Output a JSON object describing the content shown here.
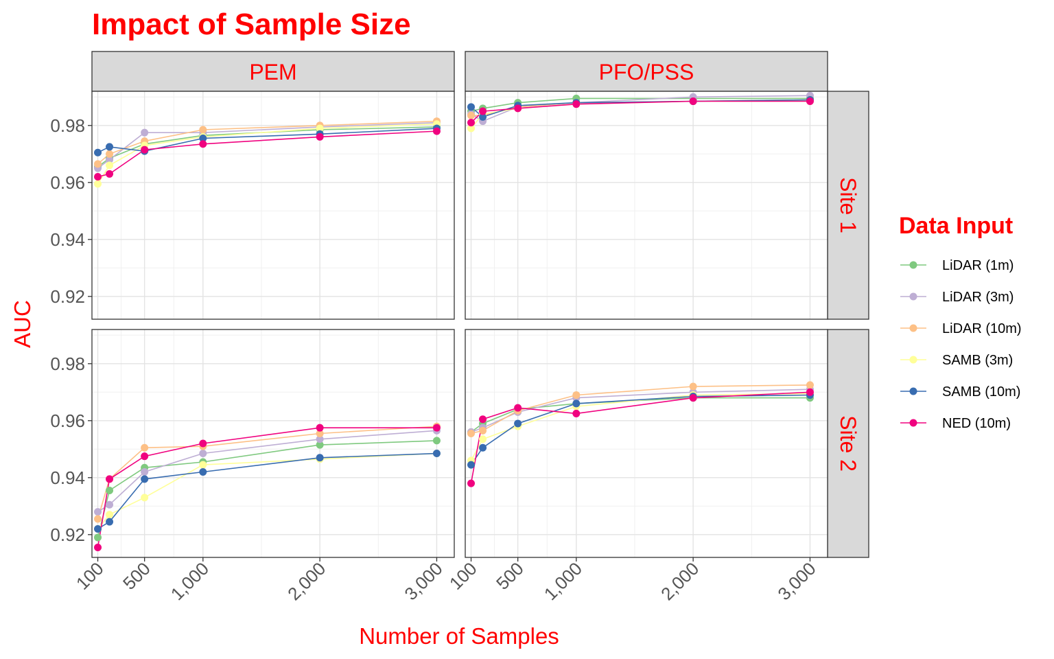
{
  "chart_data": {
    "type": "line",
    "title": "Impact of Sample Size",
    "xlabel": "Number of Samples",
    "ylabel": "AUC",
    "columns": [
      "PEM",
      "PFO/PSS"
    ],
    "rows": [
      "Site 1",
      "Site 2"
    ],
    "x": [
      100,
      200,
      500,
      1000,
      2000,
      3000
    ],
    "xticks": [
      100,
      500,
      1000,
      2000,
      3000
    ],
    "xtick_labels": [
      "100",
      "500",
      "1,000",
      "2,000",
      "3,000"
    ],
    "xlim": [
      50,
      3150
    ],
    "ylim": [
      0.912,
      0.992
    ],
    "yticks": [
      0.92,
      0.94,
      0.96,
      0.98
    ],
    "ytick_labels": [
      "0.92",
      "0.94",
      "0.96",
      "0.98"
    ],
    "grid": true,
    "legend": {
      "title": "Data Input",
      "position": "right",
      "entries": [
        "LiDAR (1m)",
        "LiDAR (3m)",
        "LiDAR (10m)",
        "SAMB (3m)",
        "SAMB (10m)",
        "NED (10m)"
      ]
    },
    "series_colors": [
      "#7fc97f",
      "#beaed4",
      "#fdc086",
      "#ffff99",
      "#386cb0",
      "#f0027f"
    ],
    "panels": [
      {
        "row": "Site 1",
        "col": "PEM",
        "series": [
          {
            "name": "LiDAR (1m)",
            "values": [
              0.9655,
              0.9685,
              0.9735,
              0.9765,
              0.9785,
              0.9795
            ]
          },
          {
            "name": "LiDAR (3m)",
            "values": [
              0.965,
              0.968,
              0.9775,
              0.9775,
              0.9795,
              0.981
            ]
          },
          {
            "name": "LiDAR (10m)",
            "values": [
              0.9665,
              0.97,
              0.9745,
              0.9785,
              0.98,
              0.9815
            ]
          },
          {
            "name": "SAMB (3m)",
            "values": [
              0.9595,
              0.966,
              0.973,
              0.976,
              0.979,
              0.9805
            ]
          },
          {
            "name": "SAMB (10m)",
            "values": [
              0.9705,
              0.9725,
              0.971,
              0.9755,
              0.977,
              0.979
            ]
          },
          {
            "name": "NED (10m)",
            "values": [
              0.962,
              0.963,
              0.9715,
              0.9735,
              0.976,
              0.978
            ]
          }
        ]
      },
      {
        "row": "Site 1",
        "col": "PFO/PSS",
        "series": [
          {
            "name": "LiDAR (1m)",
            "values": [
              0.985,
              0.986,
              0.988,
              0.9895,
              0.9895,
              0.9895
            ]
          },
          {
            "name": "LiDAR (3m)",
            "values": [
              0.984,
              0.9815,
              0.9865,
              0.988,
              0.99,
              0.9905
            ]
          },
          {
            "name": "LiDAR (10m)",
            "values": [
              0.9835,
              0.9835,
              0.9865,
              0.988,
              0.9885,
              0.989
            ]
          },
          {
            "name": "SAMB (3m)",
            "values": [
              0.979,
              0.984,
              0.986,
              0.9875,
              0.9885,
              0.9885
            ]
          },
          {
            "name": "SAMB (10m)",
            "values": [
              0.9865,
              0.983,
              0.987,
              0.988,
              0.9885,
              0.989
            ]
          },
          {
            "name": "NED (10m)",
            "values": [
              0.981,
              0.985,
              0.986,
              0.9875,
              0.9885,
              0.9885
            ]
          }
        ]
      },
      {
        "row": "Site 2",
        "col": "PEM",
        "series": [
          {
            "name": "LiDAR (1m)",
            "values": [
              0.919,
              0.9355,
              0.9435,
              0.9455,
              0.9515,
              0.953
            ]
          },
          {
            "name": "LiDAR (3m)",
            "values": [
              0.928,
              0.9305,
              0.942,
              0.9485,
              0.9535,
              0.9565
            ]
          },
          {
            "name": "LiDAR (10m)",
            "values": [
              0.9255,
              0.9395,
              0.9505,
              0.951,
              0.9555,
              0.958
            ]
          },
          {
            "name": "SAMB (3m)",
            "values": [
              0.922,
              0.927,
              0.933,
              0.9445,
              0.9465,
              0.9485
            ]
          },
          {
            "name": "SAMB (10m)",
            "values": [
              0.922,
              0.9245,
              0.9395,
              0.942,
              0.947,
              0.9485
            ]
          },
          {
            "name": "NED (10m)",
            "values": [
              0.9155,
              0.9395,
              0.9475,
              0.952,
              0.9575,
              0.9575
            ]
          }
        ]
      },
      {
        "row": "Site 2",
        "col": "PFO/PSS",
        "series": [
          {
            "name": "LiDAR (1m)",
            "values": [
              0.956,
              0.959,
              0.964,
              0.966,
              0.968,
              0.968
            ]
          },
          {
            "name": "LiDAR (3m)",
            "values": [
              0.956,
              0.9575,
              0.963,
              0.968,
              0.97,
              0.971
            ]
          },
          {
            "name": "LiDAR (10m)",
            "values": [
              0.9555,
              0.9565,
              0.9635,
              0.969,
              0.972,
              0.9725
            ]
          },
          {
            "name": "SAMB (3m)",
            "values": [
              0.946,
              0.9535,
              0.958,
              0.965,
              0.969,
              0.9695
            ]
          },
          {
            "name": "SAMB (10m)",
            "values": [
              0.9445,
              0.9505,
              0.959,
              0.966,
              0.9685,
              0.969
            ]
          },
          {
            "name": "NED (10m)",
            "values": [
              0.938,
              0.9605,
              0.9645,
              0.9625,
              0.968,
              0.97
            ]
          }
        ]
      }
    ]
  }
}
